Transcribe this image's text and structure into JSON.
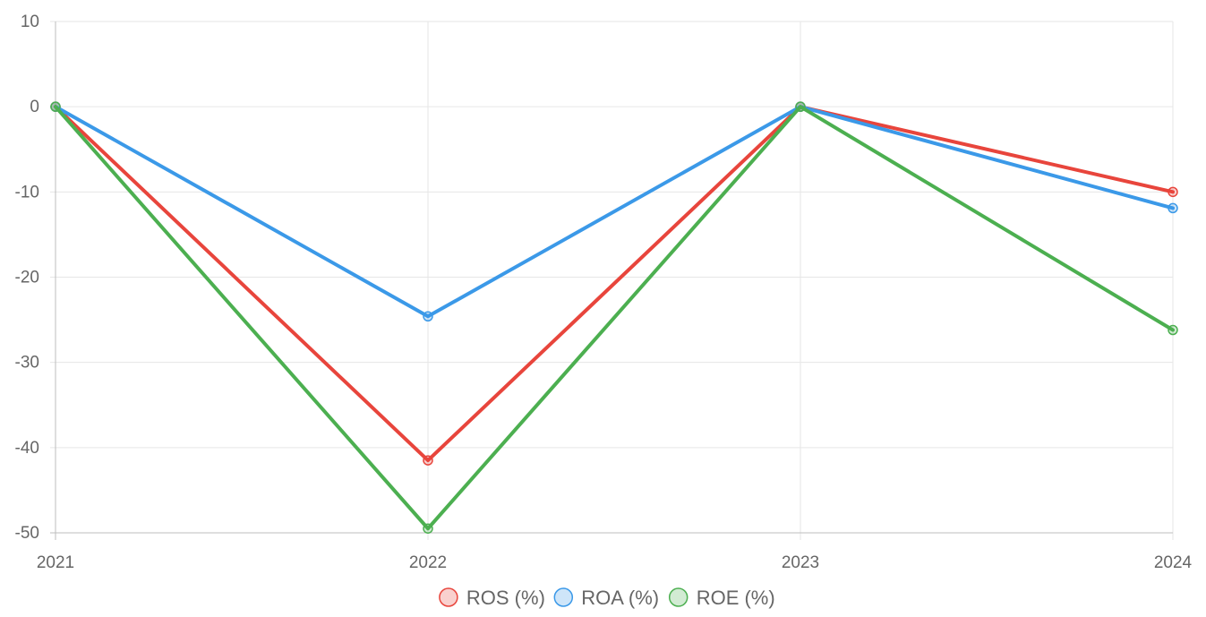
{
  "chart_data": {
    "type": "line",
    "categories": [
      "2021",
      "2022",
      "2023",
      "2024"
    ],
    "ylim": [
      -50,
      10
    ],
    "yticks": [
      10,
      0,
      -10,
      -20,
      -30,
      -40,
      -50
    ],
    "grid": true,
    "legend_position": "bottom",
    "series": [
      {
        "name": "ROS (%)",
        "color": "#e8453c",
        "values": [
          0,
          -41.5,
          0,
          -10
        ]
      },
      {
        "name": "ROA (%)",
        "color": "#3b99e8",
        "values": [
          0,
          -24.6,
          0,
          -11.9
        ]
      },
      {
        "name": "ROE (%)",
        "color": "#4caf50",
        "values": [
          0,
          -49.5,
          0,
          -26.2
        ]
      }
    ]
  }
}
